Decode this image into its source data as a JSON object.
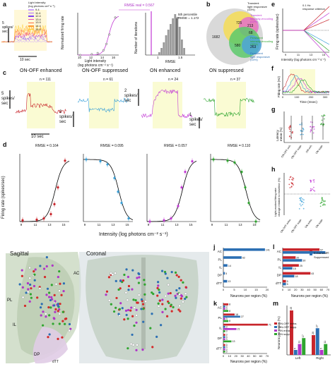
{
  "panels": {
    "a": {
      "label": "a",
      "legend_title": "Light intensity\n(log photons cm² s⁻¹)",
      "legend": [
        "9.4",
        "11.4",
        "12.4",
        "13.4",
        "13.9",
        "14.4",
        "15.4"
      ],
      "legend_colors": [
        "#c9a0ff",
        "#a86bff",
        "#7b3ff2",
        "#e64fb7",
        "#ff6b3d",
        "#ff9933",
        "#ffcc33"
      ],
      "ylabel": "5\nspikes/\nsec",
      "scalebar": "10 sec",
      "curve_xlabel": "Light intensity\n(log photons cm⁻² s⁻¹)",
      "curve_ylabel": "Normalized firing rate",
      "curve_xticks": [
        "10",
        "12",
        "14",
        "16"
      ],
      "hist_ylabel": "Number of iterations",
      "hist_xlabel": "RMSE",
      "rmse_real": "RMSE real = 0.567",
      "percentile": "5th percentile\nRMSE = 1.172",
      "hist_xticks": [
        "1",
        "1.5"
      ]
    },
    "b": {
      "label": "b",
      "outer": "1682",
      "regions": [
        "725",
        "213",
        "68",
        "580",
        "263"
      ],
      "legend": [
        "Transient\nlight responsive\n(43%)",
        "Transient\nintensity-encoding\n(12%)",
        "Persistent\nintensity-encoding\n(35%)",
        "Persistent\nlight responsive\n(15%)"
      ]
    },
    "c": {
      "label": "c",
      "cells": [
        {
          "title": "ON-OFF enhanced",
          "n": "n = 111"
        },
        {
          "title": "ON-OFF suppressed",
          "n": "n = 61"
        },
        {
          "title": "ON enhanced",
          "n": "n = 24"
        },
        {
          "title": "ON suppressed",
          "n": "n = 37"
        }
      ],
      "scales": [
        "5\nspikes/\nsec",
        "2\nspikes/\nsec",
        "2\nspikes/\nsec",
        "1\nspikes/\nsec"
      ],
      "scalebar": "10 sec"
    },
    "d": {
      "label": "d",
      "rmse": [
        "RMSE = 0.164",
        "RMSE = 0.095",
        "RMSE = 0.057",
        "RMSE = 0.110"
      ],
      "xlabel": "Intensity (log photons cm⁻² s⁻¹)",
      "ylabel": "Firing rate (spikes/sec)",
      "xticks": [
        "9",
        "11",
        "13",
        "15"
      ]
    },
    "e": {
      "label": "e",
      "annotation": "0.1 Hz\nresponse criterion",
      "ylabel": "Firing rate (spikes/sec)",
      "xlabel": "Intensity (log photons cm⁻² s⁻¹)",
      "xticks": [
        "9",
        "11",
        "13",
        "15"
      ]
    },
    "f": {
      "label": "f",
      "ylabel": "Firing rate (Hz)",
      "xlabel": "Time (msec)",
      "xticks": [
        "0",
        "100",
        "200",
        "300"
      ]
    },
    "g": {
      "label": "g",
      "ylabel": "Latency\nmean (%)",
      "groups": [
        "ON-OFF enh.",
        "ON-OFF supp.",
        "ON enh.",
        "ON supp."
      ]
    },
    "h": {
      "label": "h",
      "ylabel": "Light-evoked firing rate\nchange relative to baseline (%)",
      "groups": [
        "ON-OFF enha.",
        "ON-OFF supp.",
        "ON enha.",
        "ON supp."
      ]
    },
    "i": {
      "label": "i",
      "sagittal": "Sagittal",
      "coronal": "Coronal",
      "regions": [
        "AC",
        "PL",
        "IL",
        "DP",
        "dTT"
      ]
    },
    "j": {
      "label": "j",
      "xlabel": "Neurons per region (%)",
      "xticks": [
        "0",
        "5",
        "10",
        "15",
        "20"
      ]
    },
    "k": {
      "label": "k",
      "xlabel": "Neurons per region (%)",
      "xticks": [
        "0",
        "10",
        "20",
        "30",
        "40",
        "50",
        "60",
        "70"
      ],
      "legend": [
        "ON-OFF enha.",
        "ON-OFF supp.",
        "ON enha.",
        "ON supp."
      ]
    },
    "l": {
      "label": "l",
      "xlabel": "Neurons per region (%)",
      "xticks": [
        "0",
        "10",
        "20",
        "30",
        "40",
        "50",
        "60",
        "70"
      ],
      "legend": [
        "Enhanced",
        "Suppressed"
      ]
    },
    "m": {
      "label": "m",
      "ylabel": "Neurons per region (%)",
      "xticks": [
        "Left",
        "Right"
      ]
    }
  },
  "chart_data": [
    {
      "panel": "j",
      "type": "bar",
      "categories": [
        "AC",
        "PL",
        "IL",
        "DP",
        "dTT"
      ],
      "values": [
        141,
        62,
        14,
        5,
        13
      ],
      "xlabel": "Neurons per region (%)",
      "colors": [
        "#2c6fb3"
      ]
    },
    {
      "panel": "k",
      "type": "bar",
      "categories": [
        "AC",
        "PL",
        "IL",
        "DP",
        "dTT"
      ],
      "series": [
        {
          "name": "ON-OFF enha.",
          "color": "#c8252b",
          "values": [
            8,
            18,
            71,
            3,
            3
          ]
        },
        {
          "name": "ON-OFF supp.",
          "color": "#2c6fb3",
          "values": [
            3,
            27,
            3,
            3,
            3
          ]
        },
        {
          "name": "ON enha.",
          "color": "#b035c7",
          "values": [
            3,
            3,
            21,
            3,
            3
          ]
        },
        {
          "name": "ON supp.",
          "color": "#2fa52f",
          "values": [
            8,
            8,
            3,
            13,
            3
          ]
        }
      ],
      "xlabel": "Neurons per region (%)",
      "xlim": [
        0,
        70
      ]
    },
    {
      "panel": "l",
      "type": "bar",
      "categories": [
        "AC",
        "PL",
        "IL",
        "DP",
        "dTT"
      ],
      "series": [
        {
          "name": "Enhanced",
          "color": "#c8252b",
          "values": [
            57,
            20,
            25,
            43,
            5
          ]
        },
        {
          "name": "Suppressed",
          "color": "#2c6fb3",
          "values": [
            66,
            30,
            15,
            18,
            5
          ]
        }
      ],
      "xlabel": "Neurons per region (%)",
      "xlim": [
        0,
        70
      ]
    },
    {
      "panel": "m",
      "type": "bar",
      "categories": [
        "Left",
        "Right"
      ],
      "series": [
        {
          "name": "ON-OFF enha.",
          "color": "#c8252b",
          "values": [
            45,
            20
          ]
        },
        {
          "name": "ON-OFF supp.",
          "color": "#2c6fb3",
          "values": [
            5,
            27
          ]
        },
        {
          "name": "ON enha.",
          "color": "#b035c7",
          "values": [
            11,
            5
          ]
        },
        {
          "name": "ON supp.",
          "color": "#2fa52f",
          "values": [
            17,
            11
          ]
        }
      ],
      "labels": [
        "45",
        "5",
        "11",
        "17",
        "20",
        "27",
        "5",
        "11"
      ],
      "ylabel": "Neurons per region (%)"
    },
    {
      "panel": "d",
      "type": "scatter",
      "x": [
        9.4,
        11.4,
        12.4,
        13.4,
        13.9,
        14.4,
        15.4
      ],
      "series": [
        {
          "name": "ON-OFF enhanced",
          "color": "#c8252b",
          "values": [
            0.02,
            0.03,
            0.05,
            0.12,
            0.28,
            0.55,
            0.98
          ]
        },
        {
          "name": "ON-OFF suppressed",
          "color": "#3aa0d8",
          "values": [
            1.0,
            0.97,
            0.92,
            0.7,
            0.48,
            0.3,
            0.05
          ]
        },
        {
          "name": "ON enhanced",
          "color": "#c23ad4",
          "values": [
            0.0,
            0.02,
            0.05,
            0.25,
            0.55,
            0.8,
            0.97
          ]
        },
        {
          "name": "ON suppressed",
          "color": "#2fa52f",
          "values": [
            1.0,
            0.98,
            0.95,
            0.8,
            0.55,
            0.3,
            0.0
          ]
        }
      ],
      "xlabel": "Intensity (log photons cm⁻² s⁻¹)",
      "ylabel": "Firing rate (spikes/sec)"
    }
  ]
}
